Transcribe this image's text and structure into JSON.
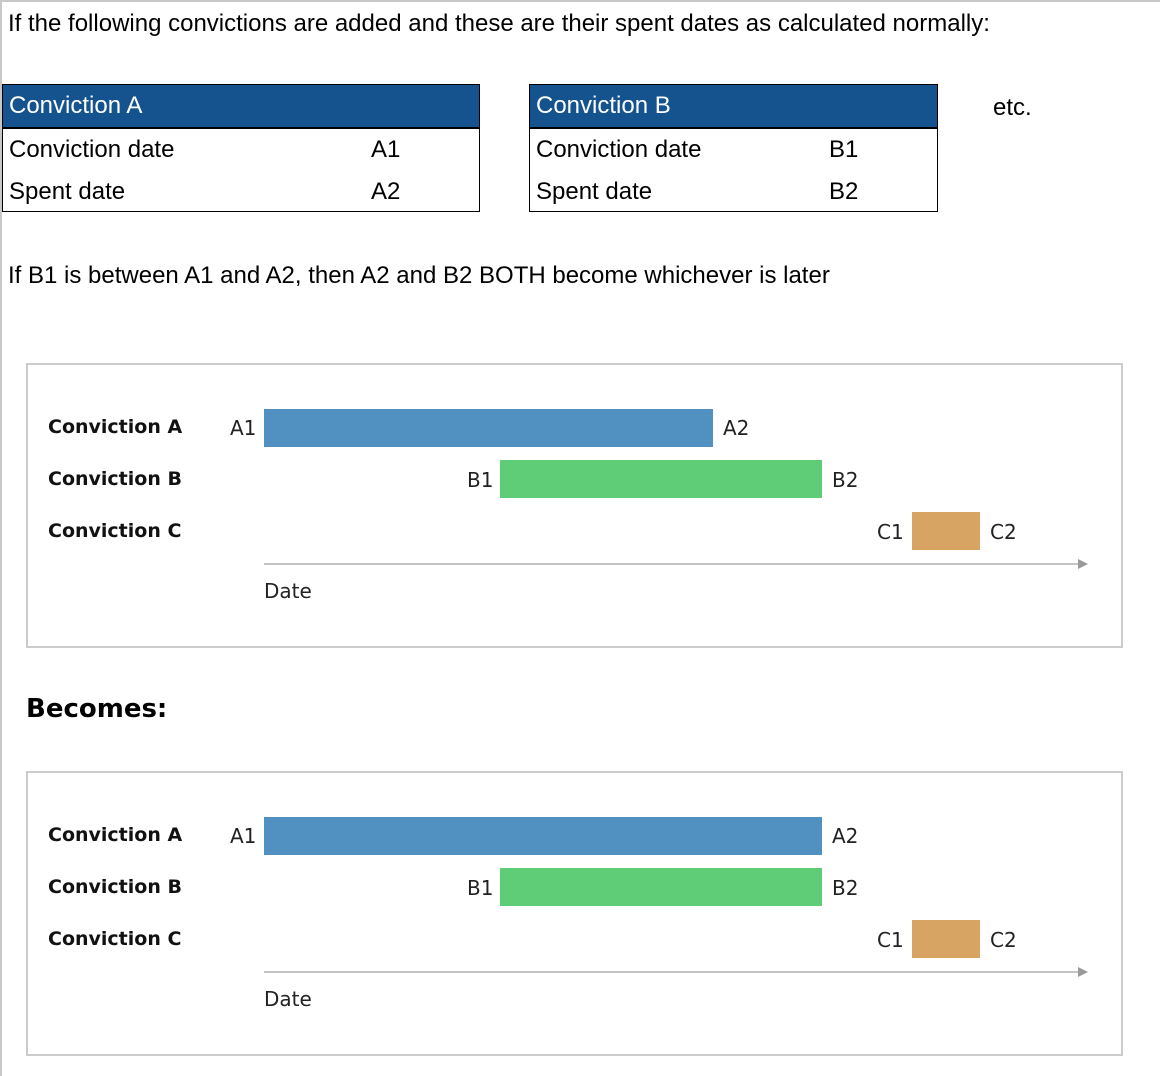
{
  "intro": "If the following convictions are added and these are their spent dates as calculated normally:",
  "tables": [
    {
      "title": "Conviction A",
      "rows": [
        {
          "label": "Conviction date",
          "value": "A1"
        },
        {
          "label": "Spent date",
          "value": "A2"
        }
      ]
    },
    {
      "title": "Conviction B",
      "rows": [
        {
          "label": "Conviction date",
          "value": "B1"
        },
        {
          "label": "Spent date",
          "value": "B2"
        }
      ]
    }
  ],
  "etc": "etc.",
  "rule": "If B1 is between A1 and A2, then A2 and B2 BOTH become whichever is later",
  "becomes": "Becomes:",
  "colors": {
    "header": "#15538f",
    "conviction_a": "#5091c2",
    "conviction_b": "#5fcd77",
    "conviction_c": "#d8a463"
  },
  "diagrams": [
    {
      "axis_label": "Date",
      "rows": [
        {
          "label": "Conviction A",
          "start": "A1",
          "end": "A2"
        },
        {
          "label": "Conviction B",
          "start": "B1",
          "end": "B2"
        },
        {
          "label": "Conviction C",
          "start": "C1",
          "end": "C2"
        }
      ]
    },
    {
      "axis_label": "Date",
      "rows": [
        {
          "label": "Conviction A",
          "start": "A1",
          "end": "A2"
        },
        {
          "label": "Conviction B",
          "start": "B1",
          "end": "B2"
        },
        {
          "label": "Conviction C",
          "start": "C1",
          "end": "C2"
        }
      ]
    }
  ]
}
